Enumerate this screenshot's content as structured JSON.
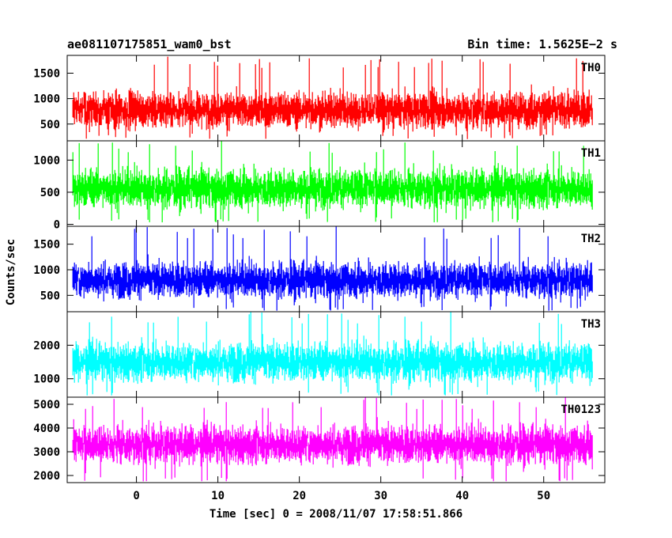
{
  "chart_data": {
    "type": "line",
    "title_left": "ae081107175851_wam0_bst",
    "title_right": "Bin time: 1.5625E−2 s",
    "xlabel": "Time [sec] 0 = 2008/11/07 17:58:51.866",
    "ylabel": "Counts/sec",
    "xlim": [
      -8.5,
      57.5
    ],
    "data_x_range": [
      -7.8,
      56.0
    ],
    "xticks": [
      0,
      10,
      20,
      30,
      40,
      50
    ],
    "grid": false,
    "series": [
      {
        "name": "TH0",
        "color": "#ff0000",
        "ylim": [
          170,
          1850
        ],
        "yticks": [
          500,
          1000,
          1500
        ],
        "mean": 780,
        "spread": 560,
        "min": 200,
        "max": 1850
      },
      {
        "name": "TH1",
        "color": "#00ff00",
        "ylim": [
          -30,
          1300
        ],
        "yticks": [
          0,
          500,
          1000
        ],
        "mean": 560,
        "spread": 470,
        "min": 30,
        "max": 1300
      },
      {
        "name": "TH2",
        "color": "#0000ff",
        "ylim": [
          180,
          1850
        ],
        "yticks": [
          500,
          1000,
          1500
        ],
        "mean": 800,
        "spread": 540,
        "min": 200,
        "max": 1850
      },
      {
        "name": "TH3",
        "color": "#00ffff",
        "ylim": [
          450,
          3000
        ],
        "yticks": [
          1000,
          2000
        ],
        "mean": 1500,
        "spread": 900,
        "min": 500,
        "max": 3000
      },
      {
        "name": "TH0123",
        "color": "#ff00ff",
        "ylim": [
          1700,
          5300
        ],
        "yticks": [
          2000,
          3000,
          4000,
          5000
        ],
        "mean": 3300,
        "spread": 1250,
        "min": 1750,
        "max": 5300
      }
    ]
  }
}
